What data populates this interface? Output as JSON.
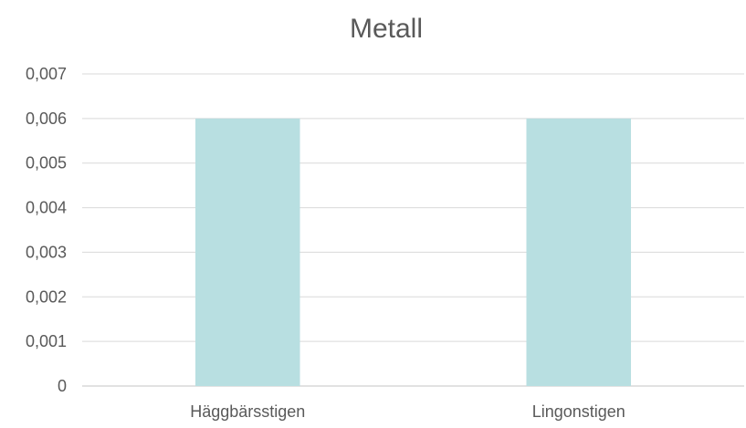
{
  "chart_data": {
    "type": "bar",
    "title": "Metall",
    "categories": [
      "Häggbärsstigen",
      "Lingonstigen"
    ],
    "values": [
      0.006,
      0.006
    ],
    "ylim": [
      0,
      0.007
    ],
    "yticks": [
      "0",
      "0,001",
      "0,002",
      "0,003",
      "0,004",
      "0,005",
      "0,006",
      "0,007"
    ],
    "grid": true,
    "bar_color": "#b8dfe1",
    "grid_color": "#d9d9d9",
    "text_color": "#595959"
  }
}
